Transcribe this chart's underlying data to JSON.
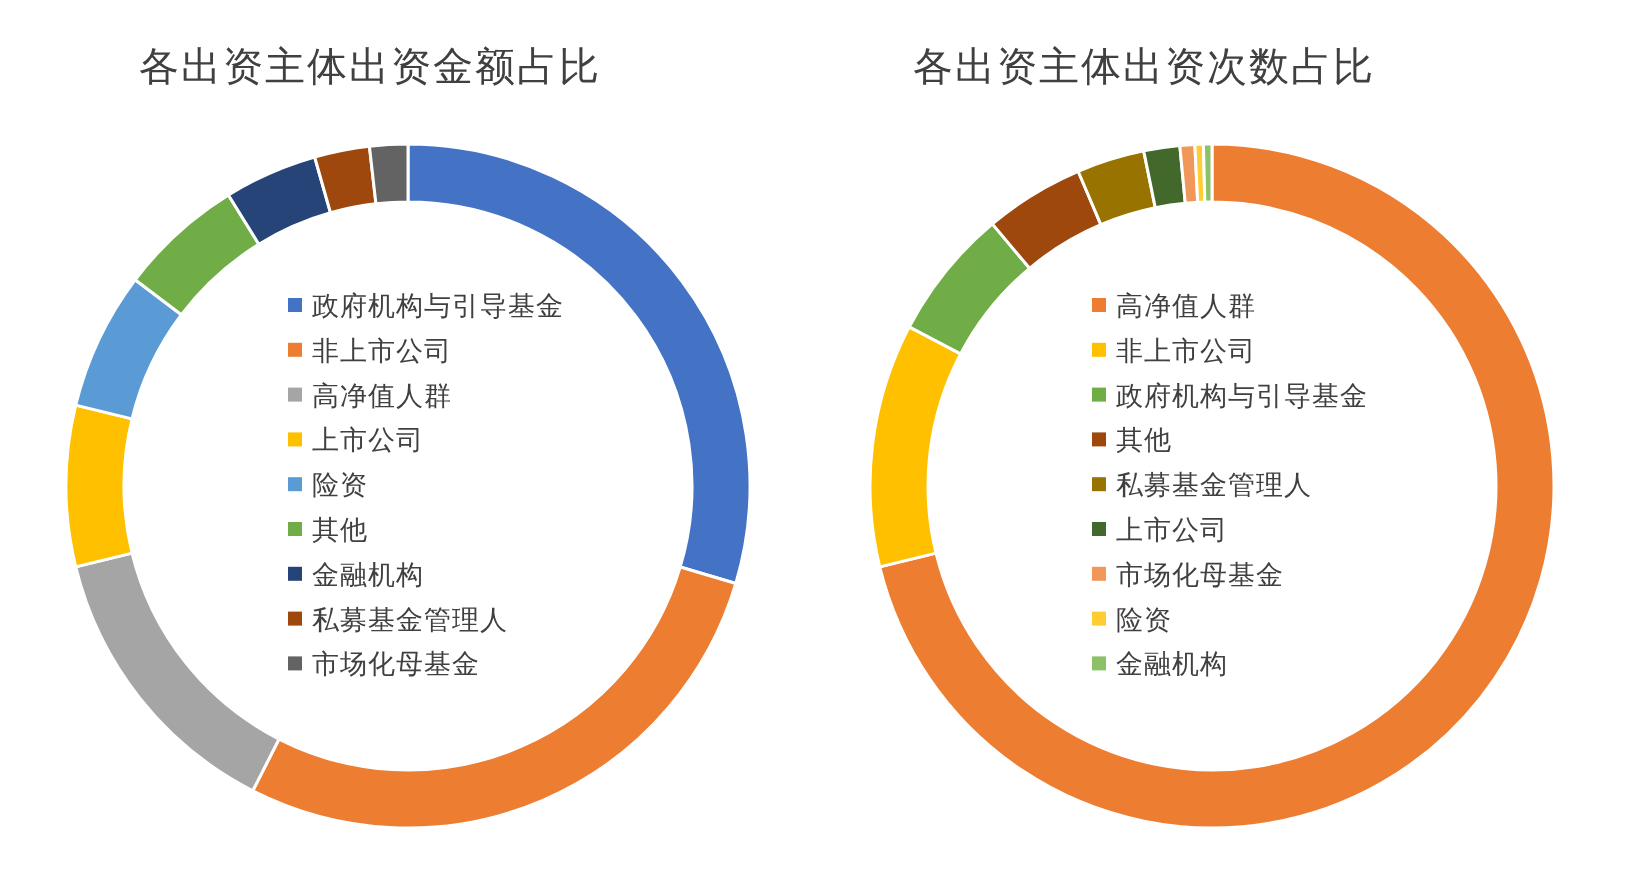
{
  "chart_data": [
    {
      "type": "donut",
      "title": "各出资主体出资金额占比",
      "legend": "center",
      "categories": [
        "政府机构与引导基金",
        "非上市公司",
        "高净值人群",
        "上市公司",
        "险资",
        "其他",
        "金融机构",
        "私募基金管理人",
        "市场化母基金"
      ],
      "values": [
        29.6,
        27.9,
        13.7,
        7.6,
        6.5,
        5.9,
        4.4,
        2.6,
        1.8
      ],
      "colors": [
        "#4472c4",
        "#ed7d31",
        "#a5a5a5",
        "#ffc000",
        "#5b9bd5",
        "#70ad47",
        "#264478",
        "#9e480e",
        "#636363"
      ]
    },
    {
      "type": "donut",
      "title": "各出资主体出资次数占比",
      "legend": "center",
      "categories": [
        "高净值人群",
        "非上市公司",
        "政府机构与引导基金",
        "其他",
        "私募基金管理人",
        "上市公司",
        "市场化母基金",
        "险资",
        "金融机构"
      ],
      "values": [
        71.2,
        11.5,
        6.2,
        4.7,
        3.2,
        1.7,
        0.7,
        0.4,
        0.4
      ],
      "colors": [
        "#ed7d31",
        "#ffc000",
        "#70ad47",
        "#9e480e",
        "#997300",
        "#43682b",
        "#f1975a",
        "#ffcd33",
        "#8cc168"
      ]
    }
  ]
}
